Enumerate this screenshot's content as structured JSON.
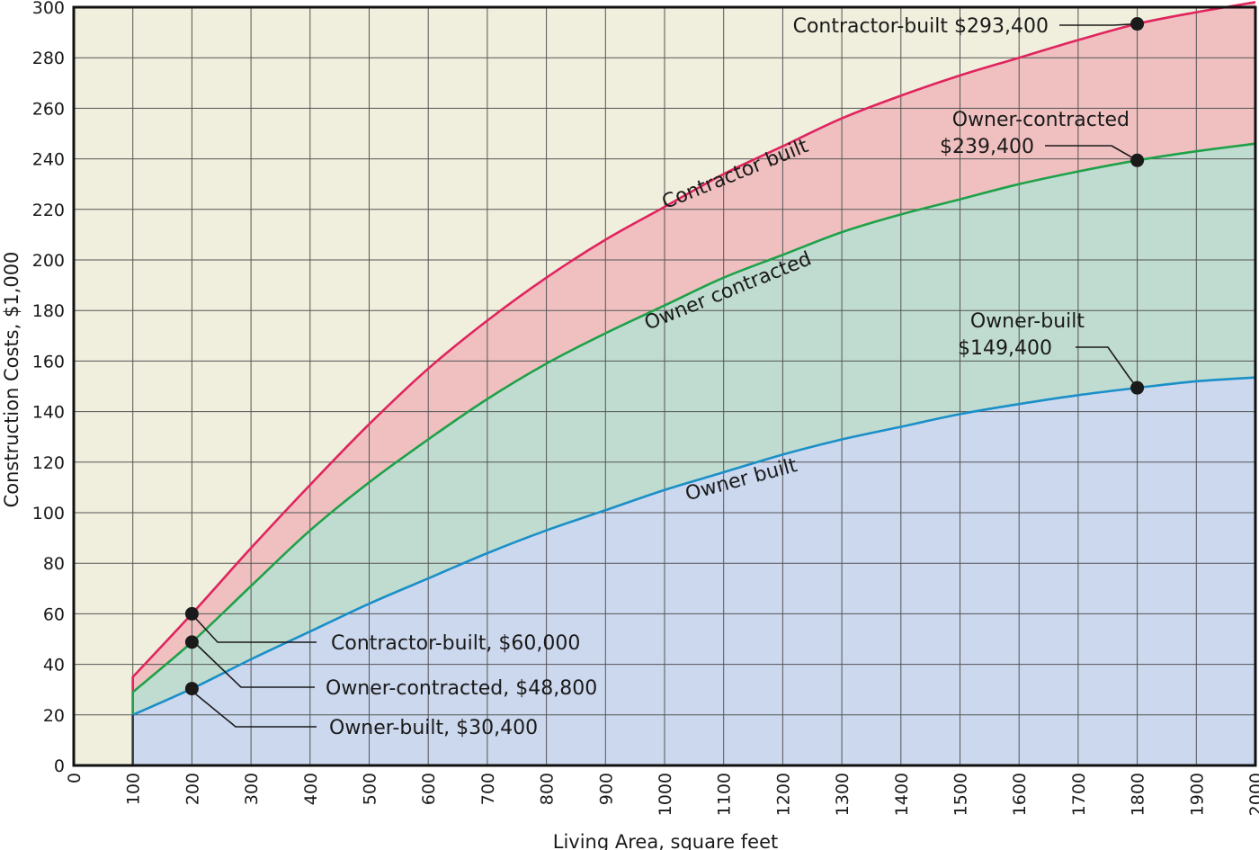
{
  "chart_data": {
    "type": "area",
    "title": "",
    "xlabel": "Living Area, square feet",
    "ylabel": "Construction Costs, $1,000",
    "xlim": [
      0,
      2000
    ],
    "ylim": [
      0,
      300
    ],
    "x_ticks": [
      "0",
      "100",
      "200",
      "300",
      "400",
      "500",
      "600",
      "700",
      "800",
      "900",
      "1000",
      "1100",
      "1200",
      "1300",
      "1400",
      "1500",
      "1600",
      "1700",
      "1800",
      "1900",
      "2000"
    ],
    "y_ticks": [
      "0",
      "20",
      "40",
      "60",
      "80",
      "100",
      "120",
      "140",
      "160",
      "180",
      "200",
      "220",
      "240",
      "260",
      "280",
      "300"
    ],
    "grid": true,
    "x": [
      100,
      200,
      300,
      400,
      500,
      600,
      700,
      800,
      900,
      1000,
      1100,
      1200,
      1300,
      1400,
      1500,
      1600,
      1700,
      1800,
      1900,
      2000
    ],
    "series": [
      {
        "name": "Contractor built",
        "color": "#e0245e",
        "fill": "#f0c0c0",
        "values": [
          35,
          60,
          86,
          111,
          135,
          157,
          176,
          193,
          208,
          221,
          234,
          245,
          256,
          265,
          273,
          280,
          287,
          293.4,
          298,
          302
        ]
      },
      {
        "name": "Owner contracted",
        "color": "#1fa14a",
        "fill": "#c0dcd0",
        "values": [
          29,
          48.8,
          71,
          93,
          112,
          129,
          145,
          159,
          171,
          182,
          193,
          202,
          211,
          218,
          224,
          230,
          235,
          239.4,
          243,
          246
        ]
      },
      {
        "name": "Owner built",
        "color": "#1a8fc8",
        "fill": "#ccd8ee",
        "values": [
          20,
          30.4,
          42,
          53,
          64,
          74,
          84,
          93,
          101,
          109,
          116,
          123,
          129,
          134,
          139,
          143,
          146.5,
          149.4,
          152,
          153.5
        ]
      }
    ],
    "annotations": [
      {
        "label": "Contractor-built $293,400",
        "x": 1800,
        "y": 293.4
      },
      {
        "label": "Owner-contracted",
        "label2": "$239,400",
        "x": 1800,
        "y": 239.4
      },
      {
        "label": "Owner-built",
        "label2": "$149,400",
        "x": 1800,
        "y": 149.4
      },
      {
        "label": "Contractor-built, $60,000",
        "x": 200,
        "y": 60
      },
      {
        "label": "Owner-contracted, $48,800",
        "x": 200,
        "y": 48.8
      },
      {
        "label": "Owner-built, $30,400",
        "x": 200,
        "y": 30.4
      }
    ],
    "colors": {
      "background": "#f0eedc",
      "grid": "#555555",
      "point": "#1a1a1a"
    }
  }
}
